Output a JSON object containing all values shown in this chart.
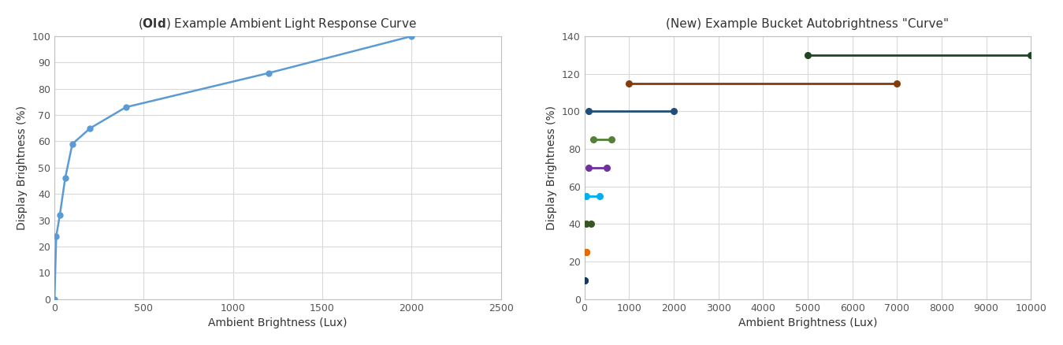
{
  "left": {
    "title_pre": "(",
    "title_bold": "Old",
    "title_post": ") Example Ambient Light Response Curve",
    "xlabel": "Ambient Brightness (Lux)",
    "ylabel": "Display Brightness (%)",
    "x": [
      0,
      10,
      30,
      60,
      100,
      200,
      400,
      1200,
      2000
    ],
    "y": [
      0,
      24,
      32,
      46,
      59,
      65,
      73,
      86,
      100
    ],
    "color": "#5b9bd5",
    "xlim": [
      0,
      2500
    ],
    "ylim": [
      0,
      100
    ],
    "xticks": [
      0,
      500,
      1000,
      1500,
      2000,
      2500
    ],
    "yticks": [
      0,
      10,
      20,
      30,
      40,
      50,
      60,
      70,
      80,
      90,
      100
    ]
  },
  "right": {
    "title": "(New) Example Bucket Autobrightness \"Curve\"",
    "xlabel": "Ambient Brightness (Lux)",
    "ylabel": "Display Brightness (%)",
    "xlim": [
      0,
      10000
    ],
    "ylim": [
      0,
      140
    ],
    "xticks": [
      0,
      1000,
      2000,
      3000,
      4000,
      5000,
      6000,
      7000,
      8000,
      9000,
      10000
    ],
    "yticks": [
      0,
      20,
      40,
      60,
      80,
      100,
      120,
      140
    ],
    "segments": [
      {
        "x": [
          100,
          2000
        ],
        "y": [
          100,
          100
        ],
        "color": "#1f4e79"
      },
      {
        "x": [
          1000,
          7000
        ],
        "y": [
          115,
          115
        ],
        "color": "#843c0c"
      },
      {
        "x": [
          5000,
          10000
        ],
        "y": [
          130,
          130
        ],
        "color": "#1e4620"
      },
      {
        "x": [
          200,
          600
        ],
        "y": [
          85,
          85
        ],
        "color": "#538135"
      },
      {
        "x": [
          100,
          500
        ],
        "y": [
          70,
          70
        ],
        "color": "#7030a0"
      },
      {
        "x": [
          50,
          350
        ],
        "y": [
          55,
          55
        ],
        "color": "#00b0f0"
      },
      {
        "x": [
          50,
          150
        ],
        "y": [
          40,
          40
        ],
        "color": "#375623"
      },
      {
        "x": [
          50,
          50
        ],
        "y": [
          25,
          25
        ],
        "color": "#e36c09"
      },
      {
        "x": [
          10,
          10
        ],
        "y": [
          10,
          10
        ],
        "color": "#17375e"
      }
    ]
  },
  "axes_bg": "#ffffff",
  "fig_bg": "#ffffff",
  "grid_color": "#d9d9d9",
  "spine_color": "#c0c0c0"
}
